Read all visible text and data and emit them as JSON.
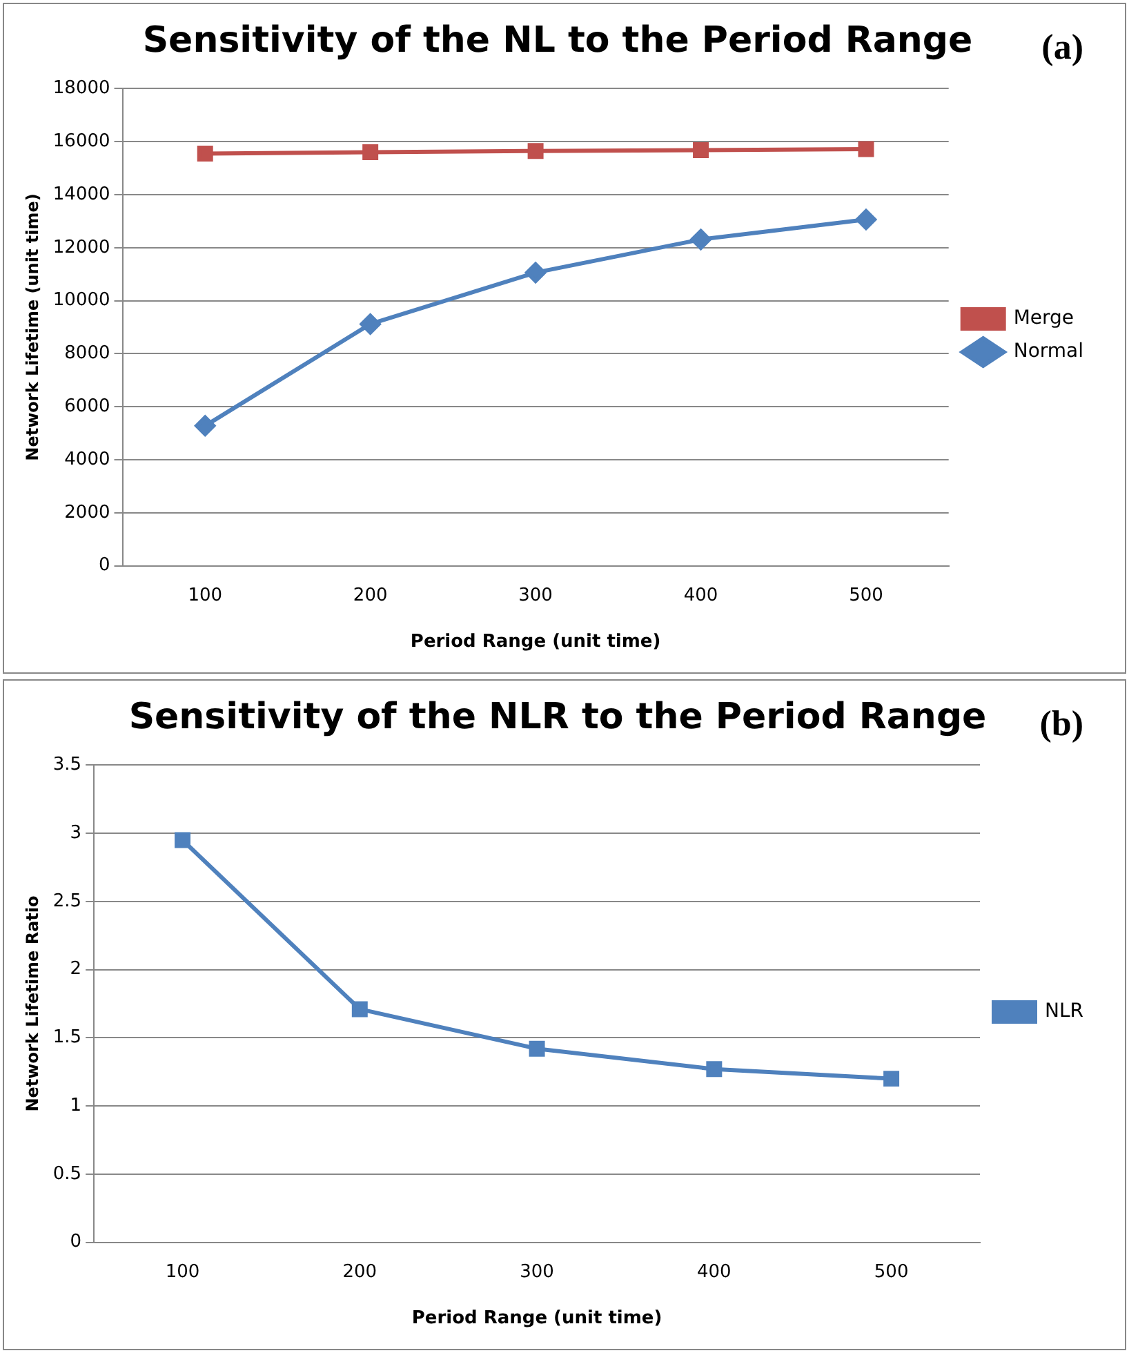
{
  "chart_data": [
    {
      "type": "line",
      "title": "Sensitivity of the NL to the Period Range",
      "xlabel": "Period Range (unit time)",
      "ylabel": "Network Lifetime (unit time)",
      "annotations": [
        "(a)"
      ],
      "categories": [
        "100",
        "200",
        "300",
        "400",
        "500"
      ],
      "series": [
        {
          "name": "Merge",
          "color": "#c0504d",
          "marker": "square",
          "values": [
            15550,
            15600,
            15650,
            15680,
            15720
          ]
        },
        {
          "name": "Normal",
          "color": "#4f81bd",
          "marker": "diamond",
          "values": [
            5280,
            9120,
            11060,
            12310,
            13060
          ]
        }
      ],
      "ylim": [
        0,
        18000
      ],
      "yticks": [
        0,
        2000,
        4000,
        6000,
        8000,
        10000,
        12000,
        14000,
        16000,
        18000
      ],
      "grid": "y",
      "legend": "right"
    },
    {
      "type": "line",
      "title": "Sensitivity of the NLR to the Period Range",
      "xlabel": "Period Range (unit time)",
      "ylabel": "Network Lifetime Ratio",
      "annotations": [
        "(b)"
      ],
      "categories": [
        "100",
        "200",
        "300",
        "400",
        "500"
      ],
      "series": [
        {
          "name": "NLR",
          "color": "#4f81bd",
          "marker": "square",
          "values": [
            2.95,
            1.71,
            1.42,
            1.27,
            1.2
          ]
        }
      ],
      "ylim": [
        0,
        3.5
      ],
      "yticks": [
        0,
        0.5,
        1,
        1.5,
        2,
        2.5,
        3,
        3.5
      ],
      "grid": "y",
      "legend": "right"
    }
  ]
}
